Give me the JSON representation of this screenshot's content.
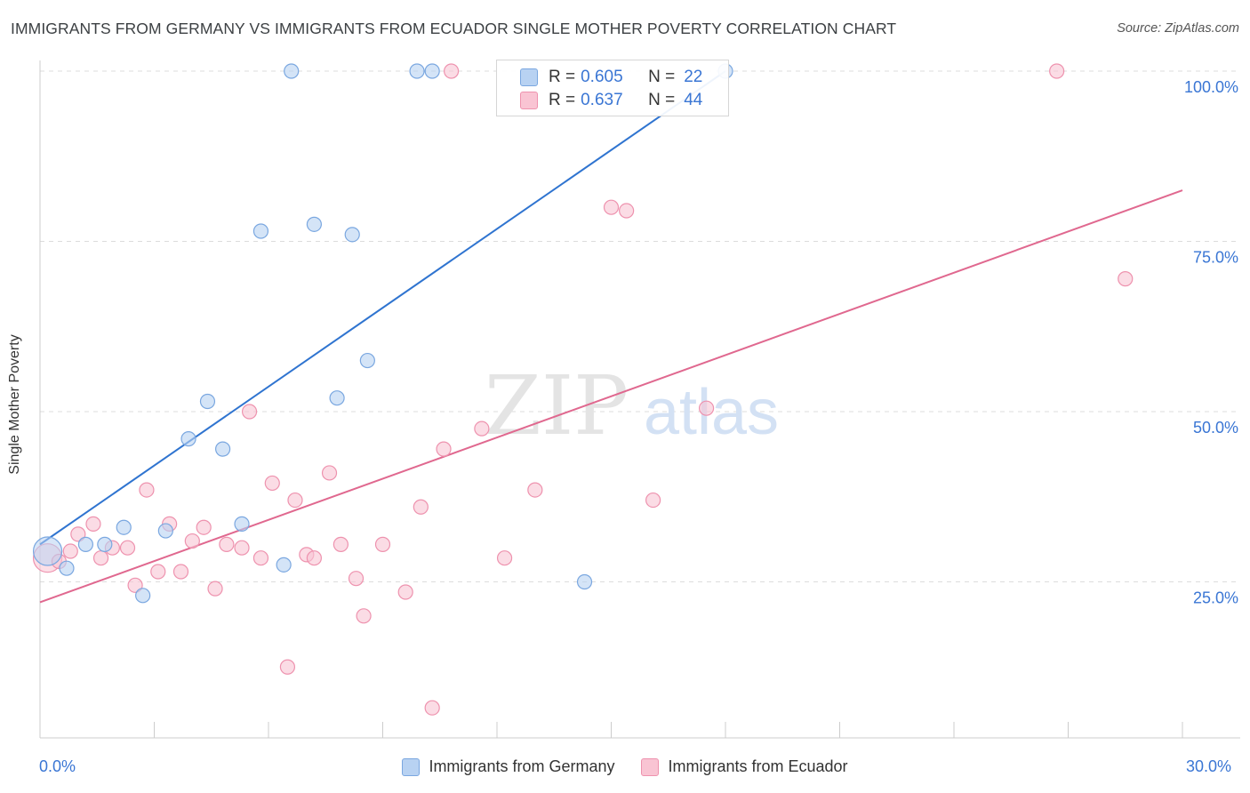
{
  "title": "IMMIGRANTS FROM GERMANY VS IMMIGRANTS FROM ECUADOR SINGLE MOTHER POVERTY CORRELATION CHART",
  "source": "Source: ZipAtlas.com",
  "watermark": {
    "zip": "ZIP",
    "atlas": "atlas"
  },
  "legend_top": {
    "germany": {
      "r_label": "R =",
      "r_value": "0.605",
      "n_label": "N =",
      "n_value": "22"
    },
    "ecuador": {
      "r_label": "R =",
      "r_value": "0.637",
      "n_label": "N =",
      "n_value": "44"
    }
  },
  "legend_bottom": {
    "germany": "Immigrants from Germany",
    "ecuador": "Immigrants from Ecuador"
  },
  "colors": {
    "germany_fill": "#b8d2f2",
    "germany_stroke": "#7aa7e0",
    "germany_line": "#2f74d0",
    "ecuador_fill": "#f9c4d3",
    "ecuador_stroke": "#ee92ae",
    "ecuador_line": "#e0688f",
    "tick_label": "#3a76d4",
    "grid": "#dcdcdc"
  },
  "chart_data": {
    "type": "scatter",
    "title": "IMMIGRANTS FROM GERMANY VS IMMIGRANTS FROM ECUADOR SINGLE MOTHER POVERTY CORRELATION CHART",
    "xlabel": "",
    "ylabel": "Single Mother Poverty",
    "xlim": [
      0,
      30
    ],
    "ylim": [
      0,
      105
    ],
    "x_tick_labels": [
      "0.0%",
      "30.0%"
    ],
    "y_ticks": [
      25,
      50,
      75,
      100
    ],
    "y_tick_labels": [
      "25.0%",
      "50.0%",
      "75.0%",
      "100.0%"
    ],
    "grid": true,
    "series": [
      {
        "name": "Immigrants from Germany",
        "points": [
          [
            0.2,
            29.5,
            "big"
          ],
          [
            0.7,
            27.0
          ],
          [
            1.2,
            30.5
          ],
          [
            1.7,
            30.5
          ],
          [
            2.2,
            33.0
          ],
          [
            2.7,
            23.0
          ],
          [
            3.3,
            32.5
          ],
          [
            3.9,
            46.0
          ],
          [
            4.4,
            51.5
          ],
          [
            4.8,
            44.5
          ],
          [
            5.3,
            33.5
          ],
          [
            5.8,
            76.5
          ],
          [
            6.4,
            27.5
          ],
          [
            6.6,
            100
          ],
          [
            7.2,
            77.5
          ],
          [
            8.2,
            76.0
          ],
          [
            7.8,
            52.0
          ],
          [
            8.6,
            57.5
          ],
          [
            9.9,
            100
          ],
          [
            10.3,
            100
          ],
          [
            14.3,
            25.0
          ],
          [
            18.0,
            100
          ]
        ],
        "trend": {
          "x": [
            0,
            18.0
          ],
          "y": [
            30.5,
            100
          ]
        }
      },
      {
        "name": "Immigrants from Ecuador",
        "points": [
          [
            0.2,
            28.5,
            "big"
          ],
          [
            0.5,
            28.0
          ],
          [
            0.8,
            29.5
          ],
          [
            1.0,
            32.0
          ],
          [
            1.4,
            33.5
          ],
          [
            1.6,
            28.5
          ],
          [
            1.9,
            30.0
          ],
          [
            2.3,
            30.0
          ],
          [
            2.5,
            24.5
          ],
          [
            2.8,
            38.5
          ],
          [
            3.1,
            26.5
          ],
          [
            3.4,
            33.5
          ],
          [
            3.7,
            26.5
          ],
          [
            4.0,
            31.0
          ],
          [
            4.3,
            33.0
          ],
          [
            4.6,
            24.0
          ],
          [
            4.9,
            30.5
          ],
          [
            5.3,
            30.0
          ],
          [
            5.5,
            50.0
          ],
          [
            5.8,
            28.5
          ],
          [
            6.1,
            39.5
          ],
          [
            6.5,
            12.5
          ],
          [
            6.7,
            37.0
          ],
          [
            7.0,
            29.0
          ],
          [
            7.2,
            28.5
          ],
          [
            7.6,
            41.0
          ],
          [
            7.9,
            30.5
          ],
          [
            8.3,
            25.5
          ],
          [
            8.5,
            20.0
          ],
          [
            9.0,
            30.5
          ],
          [
            9.6,
            23.5
          ],
          [
            10.0,
            36.0
          ],
          [
            10.3,
            6.5
          ],
          [
            10.6,
            44.5
          ],
          [
            10.8,
            100
          ],
          [
            11.6,
            47.5
          ],
          [
            12.2,
            28.5
          ],
          [
            13.0,
            38.5
          ],
          [
            15.0,
            80.0
          ],
          [
            15.4,
            79.5
          ],
          [
            16.1,
            37.0
          ],
          [
            17.5,
            50.5
          ],
          [
            26.7,
            100
          ],
          [
            28.5,
            69.5
          ]
        ],
        "trend": {
          "x": [
            0,
            30.0
          ],
          "y": [
            22.0,
            82.5
          ]
        }
      }
    ]
  }
}
